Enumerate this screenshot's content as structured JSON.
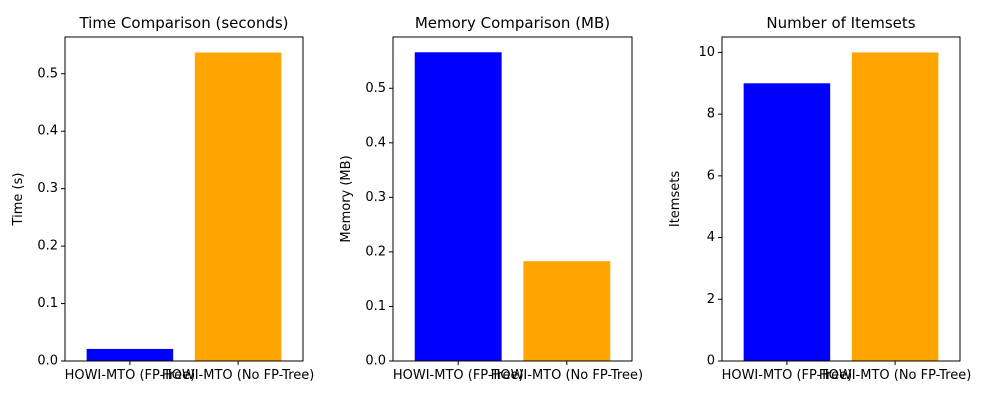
{
  "chart_data": [
    {
      "type": "bar",
      "title": "Time Comparison (seconds)",
      "xlabel": "",
      "ylabel": "Time (s)",
      "categories": [
        "HOWI-MTO (FP-Tree)",
        "HOWI-MTO (No FP-Tree)"
      ],
      "values": [
        0.021,
        0.537
      ],
      "ylim": [
        0,
        0.564
      ],
      "yticks": [
        0.0,
        0.1,
        0.2,
        0.3,
        0.4,
        0.5
      ],
      "ytick_labels": [
        "0.0",
        "0.1",
        "0.2",
        "0.3",
        "0.4",
        "0.5"
      ],
      "colors": [
        "#0000ff",
        "#ffa500"
      ],
      "grid": false
    },
    {
      "type": "bar",
      "title": "Memory Comparison (MB)",
      "xlabel": "",
      "ylabel": "Memory (MB)",
      "categories": [
        "HOWI-MTO (FP-Tree)",
        "HOWI-MTO (No FP-Tree)"
      ],
      "values": [
        0.566,
        0.183
      ],
      "ylim": [
        0,
        0.594
      ],
      "yticks": [
        0.0,
        0.1,
        0.2,
        0.3,
        0.4,
        0.5
      ],
      "ytick_labels": [
        "0.0",
        "0.1",
        "0.2",
        "0.3",
        "0.4",
        "0.5"
      ],
      "colors": [
        "#0000ff",
        "#ffa500"
      ],
      "grid": false
    },
    {
      "type": "bar",
      "title": "Number of Itemsets",
      "xlabel": "",
      "ylabel": "Itemsets",
      "categories": [
        "HOWI-MTO (FP-Tree)",
        "HOWI-MTO (No FP-Tree)"
      ],
      "values": [
        9,
        10
      ],
      "ylim": [
        0,
        10.5
      ],
      "yticks": [
        0,
        2,
        4,
        6,
        8,
        10
      ],
      "ytick_labels": [
        "0",
        "2",
        "4",
        "6",
        "8",
        "10"
      ],
      "colors": [
        "#0000ff",
        "#ffa500"
      ],
      "grid": false
    }
  ]
}
